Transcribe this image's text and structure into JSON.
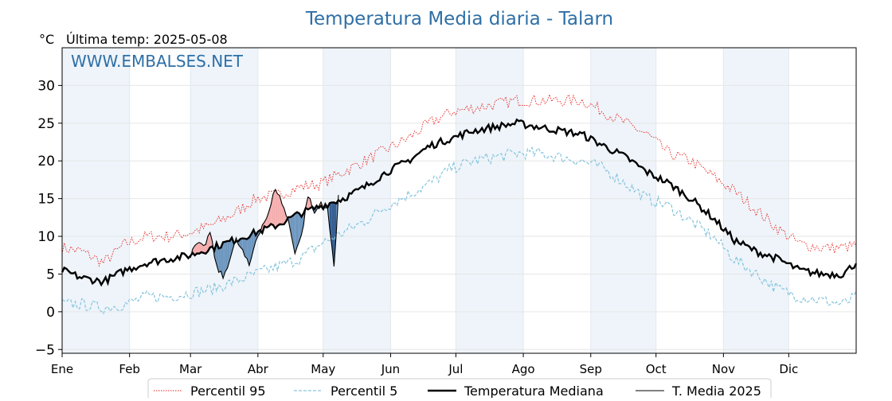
{
  "title": "Temperatura Media diaria - Talarn",
  "unit_label": "°C",
  "last_temp_label": "Última temp: 2025-05-08",
  "watermark": "WWW.EMBALSES.NET",
  "colors": {
    "title": "#2e6fa6",
    "p95": "#e8221e",
    "p5": "#87c5dd",
    "median": "#000000",
    "media2025": "#000000",
    "above_fill": "#f4a6a6",
    "below_fill": "#5f8db8",
    "below_fill_dark": "#1f4f86",
    "month_band": "#eef4fa"
  },
  "chart_data": {
    "type": "line",
    "title": "Temperatura Media diaria - Talarn",
    "xlabel": "",
    "ylabel": "°C",
    "ylim": [
      -5.5,
      35
    ],
    "xlim": [
      1,
      366
    ],
    "yticks": [
      -5,
      0,
      5,
      10,
      15,
      20,
      25,
      30
    ],
    "months": [
      {
        "label": "Ene",
        "day": 1
      },
      {
        "label": "Feb",
        "day": 32
      },
      {
        "label": "Mar",
        "day": 60
      },
      {
        "label": "Abr",
        "day": 91
      },
      {
        "label": "May",
        "day": 121
      },
      {
        "label": "Jun",
        "day": 152
      },
      {
        "label": "Jul",
        "day": 182
      },
      {
        "label": "Ago",
        "day": 213
      },
      {
        "label": "Sep",
        "day": 244
      },
      {
        "label": "Oct",
        "day": 274
      },
      {
        "label": "Nov",
        "day": 305
      },
      {
        "label": "Dic",
        "day": 335
      }
    ],
    "grid": true,
    "legend_position": "bottom-center",
    "series": [
      {
        "name": "Percentil 95",
        "style": "dotted",
        "x": [
          1,
          10,
          20,
          30,
          40,
          50,
          60,
          70,
          80,
          90,
          100,
          110,
          120,
          130,
          140,
          150,
          160,
          170,
          180,
          190,
          200,
          210,
          220,
          230,
          240,
          250,
          260,
          270,
          280,
          290,
          300,
          310,
          320,
          330,
          340,
          350,
          360,
          366
        ],
        "values": [
          8.5,
          8.0,
          6.5,
          9.0,
          10.0,
          10.0,
          10.5,
          11.5,
          13.0,
          15.0,
          15.5,
          16.5,
          17.0,
          18.5,
          20.0,
          21.5,
          23.0,
          25.0,
          26.5,
          27.0,
          27.5,
          28.0,
          28.0,
          28.0,
          28.0,
          26.5,
          25.0,
          23.5,
          21.0,
          20.0,
          18.0,
          16.0,
          13.5,
          11.0,
          9.0,
          8.5,
          8.5,
          8.8
        ]
      },
      {
        "name": "Percentil 5",
        "style": "dashed",
        "x": [
          1,
          10,
          20,
          30,
          40,
          50,
          60,
          70,
          80,
          90,
          100,
          110,
          120,
          130,
          140,
          150,
          160,
          170,
          180,
          190,
          200,
          210,
          220,
          230,
          240,
          250,
          260,
          270,
          280,
          290,
          300,
          310,
          320,
          330,
          340,
          350,
          360,
          366
        ],
        "values": [
          1.0,
          1.0,
          0.5,
          1.0,
          2.0,
          2.0,
          2.5,
          3.0,
          4.0,
          5.0,
          6.0,
          7.0,
          9.0,
          10.5,
          12.0,
          14.0,
          15.5,
          17.0,
          19.0,
          20.0,
          20.5,
          21.0,
          21.0,
          20.5,
          20.0,
          19.0,
          17.0,
          15.0,
          14.0,
          12.0,
          10.0,
          7.0,
          5.0,
          3.0,
          2.0,
          1.5,
          1.0,
          2.0
        ]
      },
      {
        "name": "Temperatura Mediana",
        "style": "solid-thick",
        "x": [
          1,
          10,
          20,
          30,
          40,
          50,
          60,
          70,
          80,
          90,
          100,
          110,
          120,
          130,
          140,
          150,
          160,
          170,
          180,
          190,
          200,
          210,
          220,
          230,
          240,
          250,
          260,
          270,
          280,
          290,
          300,
          310,
          320,
          330,
          340,
          350,
          360,
          366
        ],
        "values": [
          5.5,
          4.5,
          4.0,
          5.5,
          6.5,
          7.0,
          7.5,
          8.5,
          9.5,
          10.5,
          11.5,
          13.0,
          14.0,
          15.0,
          16.5,
          18.5,
          20.0,
          22.0,
          23.0,
          24.0,
          24.5,
          25.0,
          24.5,
          24.0,
          23.5,
          22.0,
          20.5,
          18.5,
          17.0,
          15.0,
          12.5,
          9.5,
          8.0,
          7.0,
          5.5,
          5.0,
          5.0,
          6.5
        ]
      },
      {
        "name": "T. Media 2025",
        "style": "solid-thin",
        "x": [
          60,
          63,
          66,
          69,
          72,
          75,
          78,
          81,
          84,
          87,
          90,
          93,
          96,
          99,
          102,
          105,
          108,
          111,
          114,
          117,
          120,
          123,
          126,
          128
        ],
        "values": [
          7.5,
          9.0,
          8.5,
          10.5,
          6.0,
          4.5,
          7.0,
          9.5,
          8.0,
          6.0,
          9.5,
          11.5,
          13.0,
          16.5,
          14.5,
          12.0,
          8.0,
          10.0,
          15.5,
          13.0,
          14.5,
          13.5,
          6.0,
          15.5
        ]
      }
    ]
  }
}
